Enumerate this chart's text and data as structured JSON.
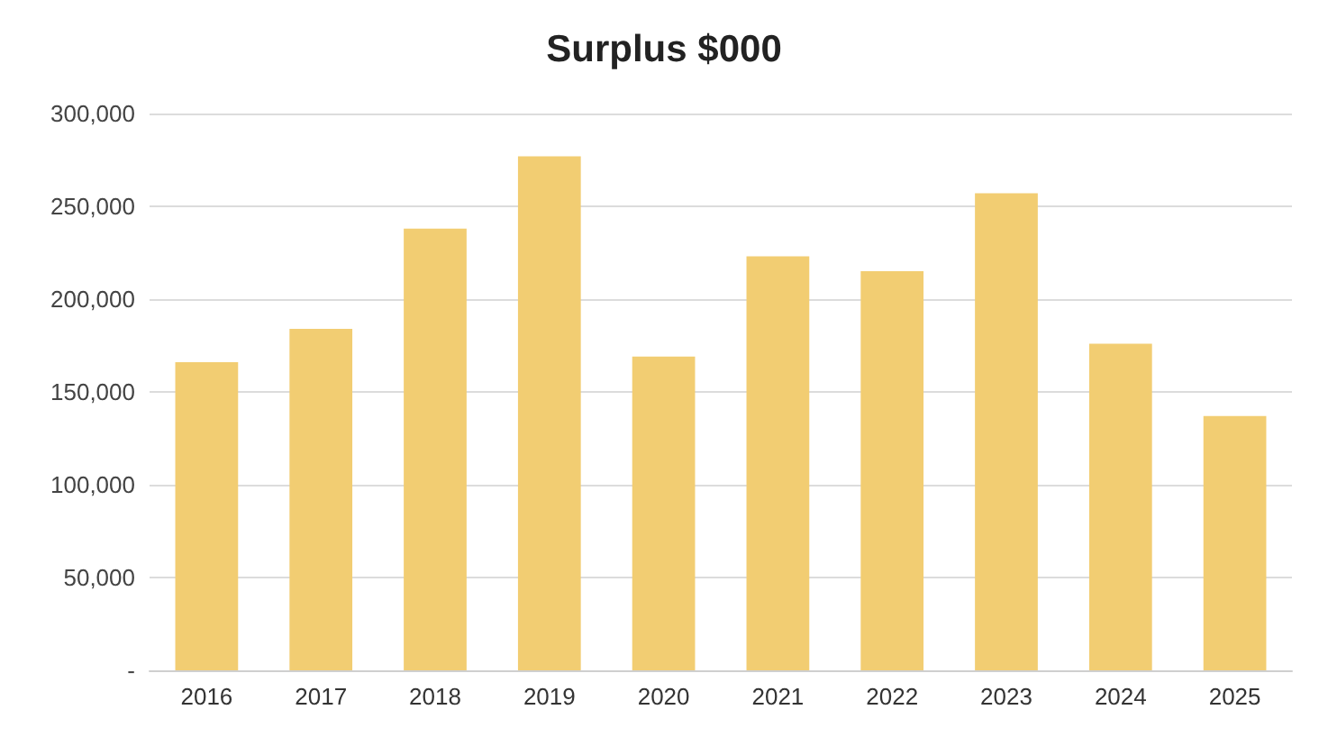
{
  "chart_data": {
    "type": "bar",
    "title": "Surplus $000",
    "categories": [
      "2016",
      "2017",
      "2018",
      "2019",
      "2020",
      "2021",
      "2022",
      "2023",
      "2024",
      "2025"
    ],
    "values": [
      166000,
      184000,
      238000,
      277000,
      169000,
      223000,
      215000,
      257000,
      176000,
      137000
    ],
    "color": "#f2cd72",
    "ylim": [
      0,
      300000
    ],
    "yticks": [
      {
        "value": 0,
        "label": "-"
      },
      {
        "value": 50000,
        "label": "50,000"
      },
      {
        "value": 100000,
        "label": "100,000"
      },
      {
        "value": 150000,
        "label": "150,000"
      },
      {
        "value": 200000,
        "label": "200,000"
      },
      {
        "value": 250000,
        "label": "250,000"
      },
      {
        "value": 300000,
        "label": "300,000"
      }
    ],
    "grid": "y"
  }
}
